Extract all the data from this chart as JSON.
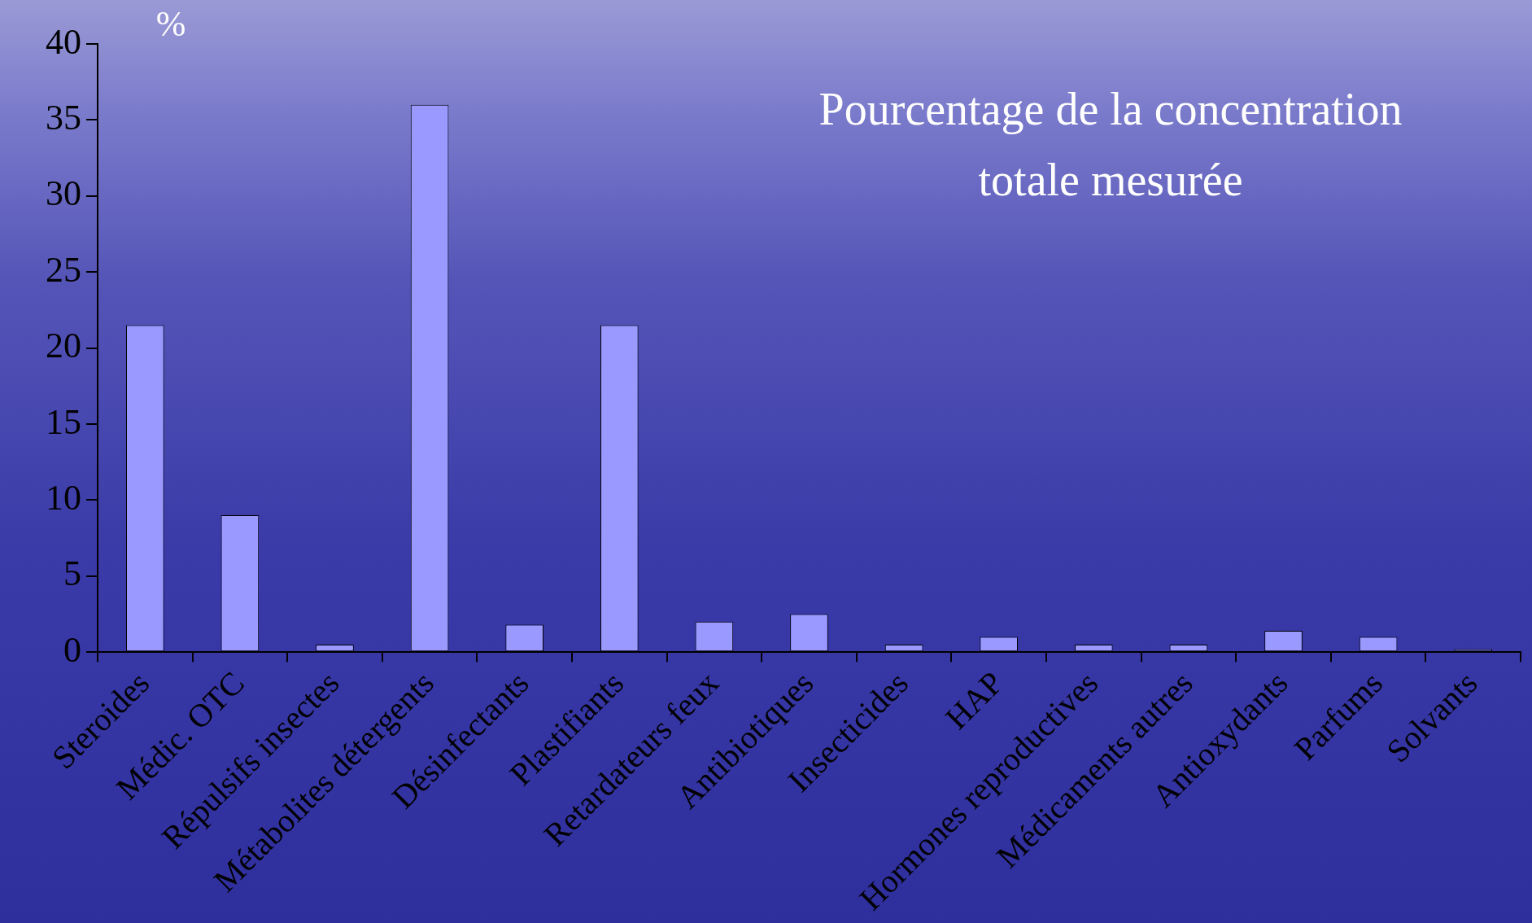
{
  "chart_data": {
    "type": "bar",
    "title": "Pourcentage de la concentration totale mesurée",
    "ylabel": "%",
    "categories": [
      "Steroides",
      "Médic. OTC",
      "Répulsifs insectes",
      "Métabolites détergents",
      "Désinfectants",
      "Plastifiants",
      "Retardateurs feux",
      "Antibiotiques",
      "Insecticides",
      "HAP",
      "Hormones reproductives",
      "Médicaments autres",
      "Antioxydants",
      "Parfums",
      "Solvants"
    ],
    "values": [
      21.5,
      9,
      0.5,
      36,
      1.8,
      21.5,
      2,
      2.5,
      0.5,
      1,
      0.5,
      0.5,
      1.4,
      1,
      0.2
    ],
    "color": "#9999ff",
    "ylim": [
      0,
      40
    ],
    "yticks": [
      0,
      5,
      10,
      15,
      20,
      25,
      30,
      35,
      40
    ],
    "grid": false,
    "legend": false
  }
}
